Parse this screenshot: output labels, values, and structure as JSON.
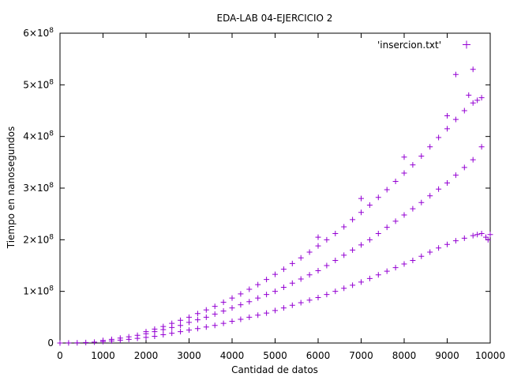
{
  "chart_data": {
    "type": "scatter",
    "title": "EDA-LAB 04-EJERCICIO 2",
    "xlabel": "Cantidad de datos",
    "ylabel": "Tiempo en nanosegundos",
    "xlim": [
      0,
      10000
    ],
    "ylim": [
      0,
      600000000
    ],
    "x_ticks": [
      0,
      1000,
      2000,
      3000,
      4000,
      5000,
      6000,
      7000,
      8000,
      9000,
      10000
    ],
    "y_ticks": [
      {
        "value": 0,
        "base": "0",
        "exp": ""
      },
      {
        "value": 100000000,
        "base": "1×10",
        "exp": "8"
      },
      {
        "value": 200000000,
        "base": "2×10",
        "exp": "8"
      },
      {
        "value": 300000000,
        "base": "3×10",
        "exp": "8"
      },
      {
        "value": 400000000,
        "base": "4×10",
        "exp": "8"
      },
      {
        "value": 500000000,
        "base": "5×10",
        "exp": "8"
      },
      {
        "value": 600000000,
        "base": "6×10",
        "exp": "8"
      }
    ],
    "grid": false,
    "legend_position": "top-right",
    "marker": "+",
    "color": "#9400d3",
    "series": [
      {
        "name": "'insercion.txt'",
        "points": [
          [
            0,
            0
          ],
          [
            200,
            150000
          ],
          [
            400,
            400000
          ],
          [
            600,
            900000
          ],
          [
            800,
            1800000
          ],
          [
            1000,
            2800000
          ],
          [
            1000,
            5000000
          ],
          [
            1200,
            4000000
          ],
          [
            1200,
            7000000
          ],
          [
            1400,
            5500000
          ],
          [
            1400,
            9500000
          ],
          [
            1600,
            7000000
          ],
          [
            1600,
            12000000
          ],
          [
            1800,
            9000000
          ],
          [
            1800,
            15000000
          ],
          [
            2000,
            11000000
          ],
          [
            2000,
            18000000
          ],
          [
            2000,
            22000000
          ],
          [
            2200,
            13000000
          ],
          [
            2200,
            22000000
          ],
          [
            2200,
            27000000
          ],
          [
            2400,
            16000000
          ],
          [
            2400,
            26000000
          ],
          [
            2400,
            32000000
          ],
          [
            2600,
            19000000
          ],
          [
            2600,
            30000000
          ],
          [
            2600,
            38000000
          ],
          [
            2800,
            22000000
          ],
          [
            2800,
            34000000
          ],
          [
            2800,
            44000000
          ],
          [
            3000,
            25000000
          ],
          [
            3000,
            40000000
          ],
          [
            3000,
            50000000
          ],
          [
            3200,
            28000000
          ],
          [
            3200,
            45000000
          ],
          [
            3200,
            57000000
          ],
          [
            3400,
            31000000
          ],
          [
            3400,
            50000000
          ],
          [
            3400,
            64000000
          ],
          [
            3600,
            34000000
          ],
          [
            3600,
            56000000
          ],
          [
            3600,
            71000000
          ],
          [
            3800,
            38000000
          ],
          [
            3800,
            62000000
          ],
          [
            3800,
            79000000
          ],
          [
            4000,
            42000000
          ],
          [
            4000,
            68000000
          ],
          [
            4000,
            87000000
          ],
          [
            4200,
            46000000
          ],
          [
            4200,
            74000000
          ],
          [
            4200,
            95000000
          ],
          [
            4400,
            50000000
          ],
          [
            4400,
            80000000
          ],
          [
            4400,
            104000000
          ],
          [
            4600,
            54000000
          ],
          [
            4600,
            87000000
          ],
          [
            4600,
            113000000
          ],
          [
            4800,
            58000000
          ],
          [
            4800,
            94000000
          ],
          [
            4800,
            123000000
          ],
          [
            5000,
            63000000
          ],
          [
            5000,
            100000000
          ],
          [
            5000,
            133000000
          ],
          [
            5200,
            68000000
          ],
          [
            5200,
            108000000
          ],
          [
            5200,
            143000000
          ],
          [
            5400,
            73000000
          ],
          [
            5400,
            116000000
          ],
          [
            5400,
            154000000
          ],
          [
            5600,
            78000000
          ],
          [
            5600,
            124000000
          ],
          [
            5600,
            165000000
          ],
          [
            5800,
            83000000
          ],
          [
            5800,
            132000000
          ],
          [
            5800,
            176000000
          ],
          [
            6000,
            88000000
          ],
          [
            6000,
            140000000
          ],
          [
            6000,
            188000000
          ],
          [
            6000,
            205000000
          ],
          [
            6200,
            94000000
          ],
          [
            6200,
            150000000
          ],
          [
            6200,
            200000000
          ],
          [
            6400,
            100000000
          ],
          [
            6400,
            160000000
          ],
          [
            6400,
            212000000
          ],
          [
            6600,
            106000000
          ],
          [
            6600,
            170000000
          ],
          [
            6600,
            225000000
          ],
          [
            6800,
            112000000
          ],
          [
            6800,
            180000000
          ],
          [
            6800,
            239000000
          ],
          [
            7000,
            118000000
          ],
          [
            7000,
            190000000
          ],
          [
            7000,
            253000000
          ],
          [
            7000,
            280000000
          ],
          [
            7200,
            125000000
          ],
          [
            7200,
            200000000
          ],
          [
            7200,
            267000000
          ],
          [
            7400,
            132000000
          ],
          [
            7400,
            212000000
          ],
          [
            7400,
            282000000
          ],
          [
            7600,
            139000000
          ],
          [
            7600,
            224000000
          ],
          [
            7600,
            297000000
          ],
          [
            7800,
            146000000
          ],
          [
            7800,
            236000000
          ],
          [
            7800,
            313000000
          ],
          [
            8000,
            153000000
          ],
          [
            8000,
            248000000
          ],
          [
            8000,
            329000000
          ],
          [
            8000,
            360000000
          ],
          [
            8200,
            160000000
          ],
          [
            8200,
            260000000
          ],
          [
            8200,
            345000000
          ],
          [
            8400,
            168000000
          ],
          [
            8400,
            272000000
          ],
          [
            8400,
            362000000
          ],
          [
            8600,
            176000000
          ],
          [
            8600,
            285000000
          ],
          [
            8600,
            380000000
          ],
          [
            8800,
            184000000
          ],
          [
            8800,
            298000000
          ],
          [
            8800,
            398000000
          ],
          [
            9000,
            191000000
          ],
          [
            9000,
            310000000
          ],
          [
            9000,
            415000000
          ],
          [
            9000,
            440000000
          ],
          [
            9200,
            198000000
          ],
          [
            9200,
            325000000
          ],
          [
            9200,
            433000000
          ],
          [
            9200,
            520000000
          ],
          [
            9400,
            203000000
          ],
          [
            9400,
            340000000
          ],
          [
            9400,
            450000000
          ],
          [
            9500,
            480000000
          ],
          [
            9600,
            208000000
          ],
          [
            9600,
            355000000
          ],
          [
            9600,
            465000000
          ],
          [
            9600,
            530000000
          ],
          [
            9700,
            210000000
          ],
          [
            9700,
            470000000
          ],
          [
            9800,
            212000000
          ],
          [
            9800,
            380000000
          ],
          [
            9800,
            475000000
          ],
          [
            9900,
            205000000
          ],
          [
            9950,
            200000000
          ],
          [
            10000,
            210000000
          ]
        ]
      }
    ]
  }
}
